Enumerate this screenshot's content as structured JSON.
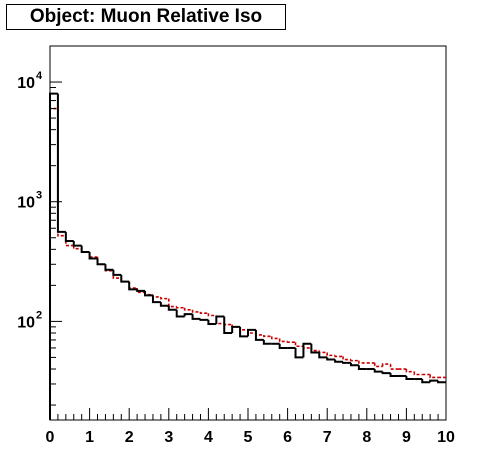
{
  "chart_data": {
    "type": "histogram",
    "title": "Object: Muon Relative Iso",
    "xlabel": "",
    "ylabel": "",
    "xlim": [
      0,
      10
    ],
    "ylim": [
      15,
      20000
    ],
    "yscale": "log",
    "grid": false,
    "x_ticks": [
      "0",
      "1",
      "2",
      "3",
      "4",
      "5",
      "6",
      "7",
      "8",
      "9",
      "10"
    ],
    "y_ticks": [
      {
        "base": "10",
        "exp": "2",
        "value": 100
      },
      {
        "base": "10",
        "exp": "3",
        "value": 1000
      },
      {
        "base": "10",
        "exp": "4",
        "value": 10000
      }
    ],
    "bin_width": 0.2,
    "series": [
      {
        "color": "#cc0000",
        "style": "dashed",
        "values": [
          6000,
          520,
          430,
          405,
          380,
          345,
          300,
          265,
          230,
          215,
          190,
          175,
          167,
          160,
          155,
          133,
          130,
          125,
          120,
          117,
          112,
          96,
          94,
          90,
          85,
          80,
          77,
          75,
          72,
          68,
          67,
          62,
          60,
          57,
          55,
          52,
          51,
          48,
          47,
          45,
          45,
          42,
          44,
          40,
          40,
          38,
          36,
          36,
          34,
          34
        ]
      },
      {
        "color": "#000000",
        "style": "solid",
        "values": [
          8000,
          560,
          470,
          430,
          380,
          335,
          300,
          270,
          245,
          215,
          185,
          180,
          165,
          145,
          135,
          125,
          110,
          115,
          105,
          103,
          95,
          110,
          80,
          90,
          75,
          85,
          70,
          65,
          65,
          60,
          60,
          50,
          65,
          55,
          50,
          48,
          46,
          45,
          43,
          40,
          40,
          38,
          37,
          35,
          35,
          33,
          33,
          31,
          32,
          31
        ]
      }
    ]
  }
}
